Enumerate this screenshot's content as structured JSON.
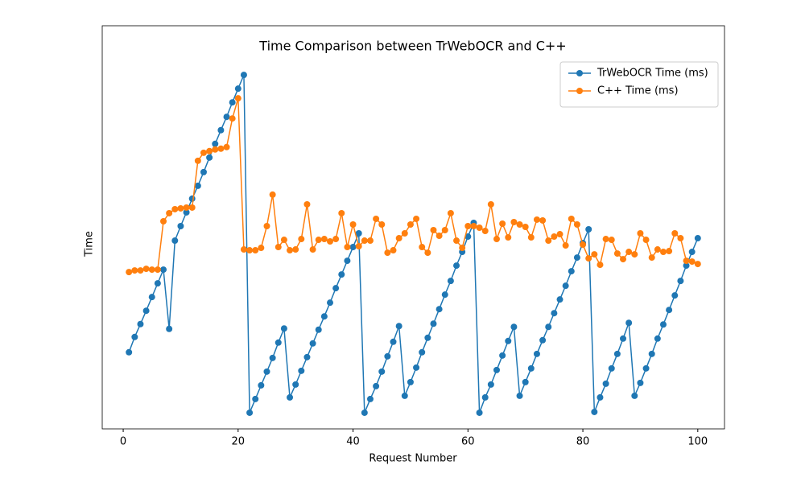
{
  "chart_data": {
    "type": "line",
    "title": "Time Comparison between TrWebOCR and C++",
    "xlabel": "Request Number",
    "ylabel": "Time",
    "x": [
      1,
      2,
      3,
      4,
      5,
      6,
      7,
      8,
      9,
      10,
      11,
      12,
      13,
      14,
      15,
      16,
      17,
      18,
      19,
      20,
      21,
      22,
      23,
      24,
      25,
      26,
      27,
      28,
      29,
      30,
      31,
      32,
      33,
      34,
      35,
      36,
      37,
      38,
      39,
      40,
      41,
      42,
      43,
      44,
      45,
      46,
      47,
      48,
      49,
      50,
      51,
      52,
      53,
      54,
      55,
      56,
      57,
      58,
      59,
      60,
      61,
      62,
      63,
      64,
      65,
      66,
      67,
      68,
      69,
      70,
      71,
      72,
      73,
      74,
      75,
      76,
      77,
      78,
      79,
      80,
      81,
      82,
      83,
      84,
      85,
      86,
      87,
      88,
      89,
      90,
      91,
      92,
      93,
      94,
      95,
      96,
      97,
      98,
      99,
      100
    ],
    "series": [
      {
        "name": "TrWebOCR Time (ms)",
        "color": "#1f77b4",
        "values": [
          19,
          22.8,
          26,
          29.3,
          32.7,
          36.1,
          39.5,
          24.8,
          46.7,
          50.3,
          53.7,
          57.1,
          60.3,
          63.7,
          67.3,
          70.7,
          74.1,
          77.4,
          81,
          84.4,
          87.8,
          4,
          7.4,
          10.8,
          14.2,
          17.6,
          21.4,
          24.9,
          7.8,
          11,
          14.4,
          17.8,
          21.2,
          24.6,
          27.9,
          31.3,
          34.9,
          38.3,
          41.7,
          45.1,
          48.5,
          4,
          7.4,
          10.6,
          14.2,
          18,
          21.6,
          25.5,
          8.2,
          11.6,
          15.2,
          19,
          22.6,
          26.1,
          29.7,
          33.3,
          36.7,
          40.5,
          43.9,
          47.7,
          51.1,
          4,
          7.8,
          11,
          14.6,
          18.2,
          21.8,
          25.3,
          8.2,
          11.6,
          15,
          18.6,
          22,
          25.3,
          28.7,
          32.1,
          35.5,
          39.1,
          42.5,
          46.1,
          49.5,
          4.2,
          7.8,
          11.2,
          15,
          18.6,
          22.4,
          26.3,
          8.2,
          11.4,
          15,
          18.6,
          22.4,
          25.9,
          29.5,
          33.1,
          36.7,
          40.5,
          43.9,
          47.3
        ]
      },
      {
        "name": "C++ Time (ms)",
        "color": "#ff7f0e",
        "values": [
          38.9,
          39.3,
          39.3,
          39.7,
          39.5,
          39.5,
          51.5,
          53.5,
          54.5,
          54.7,
          54.9,
          54.9,
          66.5,
          68.5,
          68.9,
          69.3,
          69.5,
          69.9,
          77,
          82,
          44.5,
          44.3,
          44.3,
          44.9,
          50.3,
          58.1,
          45.1,
          46.9,
          44.3,
          44.5,
          47.1,
          55.7,
          44.5,
          46.9,
          47.1,
          46.5,
          47.1,
          53.5,
          45.1,
          50.7,
          45.3,
          46.7,
          46.7,
          52.1,
          50.7,
          43.7,
          44.3,
          47.3,
          48.5,
          50.7,
          52.1,
          45.1,
          43.7,
          49.3,
          47.9,
          49.3,
          53.5,
          46.7,
          44.9,
          50.3,
          50.3,
          49.9,
          49.1,
          55.7,
          47.1,
          50.9,
          47.5,
          51.3,
          50.7,
          50.1,
          47.5,
          51.9,
          51.7,
          46.7,
          47.7,
          48.3,
          45.5,
          52.1,
          50.7,
          45.7,
          42.3,
          43.3,
          40.7,
          47.1,
          46.9,
          43.5,
          42.1,
          43.9,
          43.3,
          48.5,
          46.9,
          42.5,
          44.5,
          43.9,
          44.1,
          48.5,
          47.3,
          41.7,
          41.5,
          40.9
        ]
      }
    ],
    "xlim": [
      -3.65,
      104.65
    ],
    "ylim": [
      0,
      100
    ],
    "xticks": [
      0,
      20,
      40,
      60,
      80,
      100
    ],
    "legend": "upper right",
    "grid": false
  }
}
